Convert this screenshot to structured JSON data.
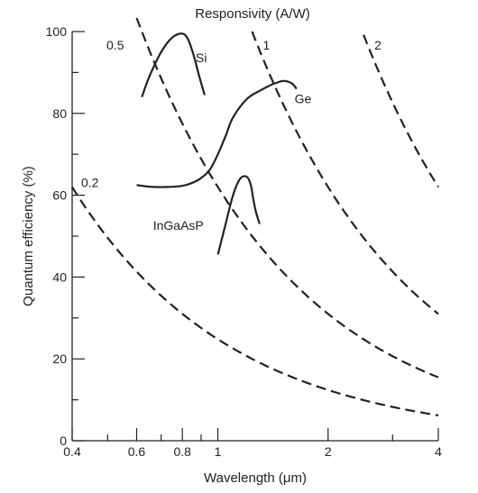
{
  "chart_data": {
    "type": "line",
    "title": "Responsivity (A/W)",
    "xlabel": "Wavelength (μm)",
    "ylabel": "Quantum efficiency (%)",
    "xscale": "log",
    "xlim": [
      0.4,
      4
    ],
    "ylim": [
      0,
      100
    ],
    "xticks": [
      0.4,
      0.6,
      0.8,
      1,
      2,
      4
    ],
    "xtick_labels": [
      "0.4",
      "0.6",
      "0.8",
      "1",
      "2",
      "4"
    ],
    "xminor": [
      0.5,
      0.7,
      0.9,
      3
    ],
    "yticks": [
      0,
      20,
      40,
      60,
      80,
      100
    ],
    "ytick_labels": [
      "0",
      "20",
      "40",
      "60",
      "80",
      "100"
    ],
    "yminor": [
      10,
      30,
      50,
      70,
      90
    ],
    "grid": false,
    "responsivity_lines": [
      {
        "label": "0.2",
        "responsivity": 0.2,
        "x_start": 0.4,
        "x_end": 4
      },
      {
        "label": "0.5",
        "responsivity": 0.5,
        "x_start": 0.6,
        "x_end": 4
      },
      {
        "label": "1",
        "responsivity": 1,
        "x_start": 1.24,
        "x_end": 4
      },
      {
        "label": "2",
        "responsivity": 2,
        "x_start": 2.5,
        "x_end": 4
      }
    ],
    "series": [
      {
        "name": "Si",
        "x": [
          0.62,
          0.65,
          0.7,
          0.75,
          0.8,
          0.83,
          0.86,
          0.89,
          0.92
        ],
        "y": [
          84,
          89,
          95,
          98.5,
          99.5,
          98,
          94,
          89,
          84.5
        ]
      },
      {
        "name": "Ge",
        "x": [
          0.6,
          0.65,
          0.72,
          0.8,
          0.86,
          0.9,
          0.95,
          1.0,
          1.05,
          1.1,
          1.2,
          1.3,
          1.4,
          1.45,
          1.5,
          1.55,
          1.6,
          1.64
        ],
        "y": [
          62.5,
          62.1,
          62,
          62.3,
          63.2,
          64.2,
          66.2,
          70,
          74.5,
          79,
          83.5,
          85.5,
          87,
          87.5,
          87.9,
          87.8,
          87.2,
          86
        ]
      },
      {
        "name": "InGaAsP",
        "x": [
          1.0,
          1.05,
          1.1,
          1.15,
          1.2,
          1.23,
          1.25,
          1.27,
          1.3
        ],
        "y": [
          45.5,
          53,
          60,
          64,
          64.5,
          62.5,
          59,
          56,
          53
        ]
      }
    ]
  }
}
